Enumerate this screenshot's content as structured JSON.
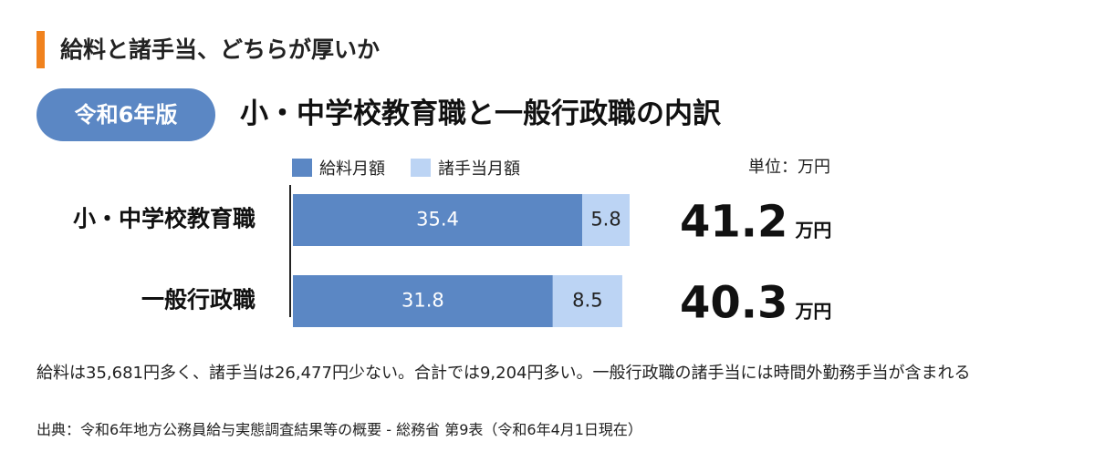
{
  "header": {
    "title": "給料と諸手当、どちらが厚いか"
  },
  "badge": {
    "label": "令和6年版"
  },
  "main_title": "小・中学校教育職と一般行政職の内訳",
  "legend": {
    "salary": "給料月額",
    "allowance": "諸手当月額"
  },
  "unit": "単位：万円",
  "colors": {
    "accent": "#f0821e",
    "badge": "#5b87c4",
    "salary": "#5b87c4",
    "allowance": "#bcd4f4",
    "axis": "#222222"
  },
  "chart_data": {
    "type": "bar",
    "orientation": "horizontal",
    "stacked": true,
    "categories": [
      "小・中学校教育職",
      "一般行政職"
    ],
    "series": [
      {
        "name": "給料月額",
        "values": [
          35.4,
          31.8
        ]
      },
      {
        "name": "諸手当月額",
        "values": [
          5.8,
          8.5
        ]
      }
    ],
    "totals": [
      {
        "value": "41.2",
        "unit": "万円"
      },
      {
        "value": "40.3",
        "unit": "万円"
      }
    ],
    "unit": "万円",
    "xlim": [
      0,
      41.2
    ]
  },
  "footnote": "給料は35,681円多く、諸手当は26,477円少ない。合計では9,204円多い。一般行政職の諸手当には時間外勤務手当が含まれる",
  "source": "出典：令和6年地方公務員給与実態調査結果等の概要 - 総務省 第9表（令和6年4月1日現在）"
}
